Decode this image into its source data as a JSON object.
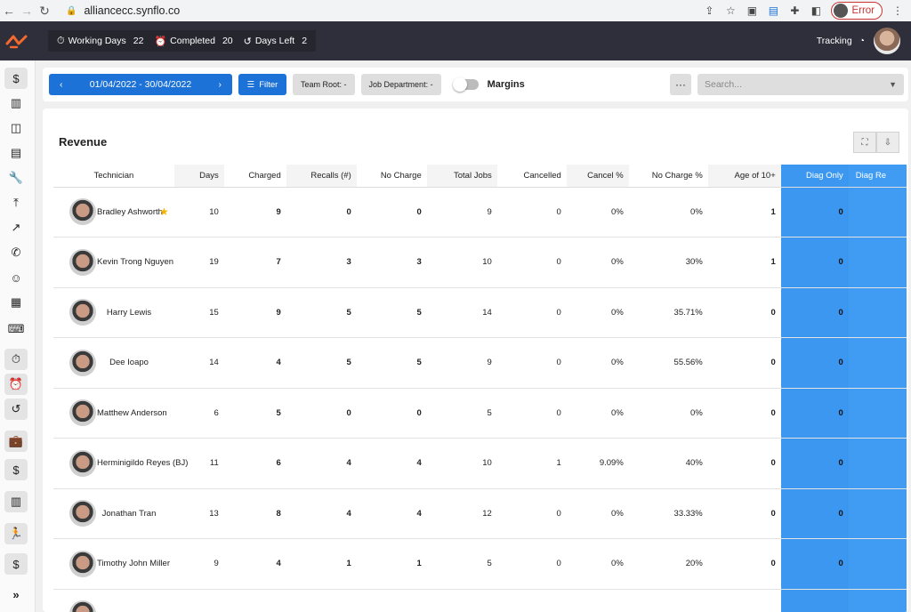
{
  "browser": {
    "url": "alliancecc.synflo.co",
    "profile_label": "Error"
  },
  "header": {
    "working_days_label": "Working Days",
    "working_days_value": "22",
    "completed_label": "Completed",
    "completed_value": "20",
    "days_left_label": "Days Left",
    "days_left_value": "2",
    "tracking_label": "Tracking"
  },
  "filters": {
    "date_range": "01/04/2022 - 30/04/2022",
    "filter_label": "Filter",
    "team_root_label": "Team Root: -",
    "job_department_label": "Job Department: -",
    "margins_label": "Margins",
    "more_label": "···",
    "search_placeholder": "Search..."
  },
  "revenue": {
    "title": "Revenue",
    "columns": [
      "Technician",
      "Days",
      "Charged",
      "Recalls (#)",
      "No Charge",
      "Total Jobs",
      "Cancelled",
      "Cancel %",
      "No Charge %",
      "Age of 10+",
      "Diag Only",
      "Diag Re"
    ],
    "rows": [
      {
        "name": "Bradley Ashworth",
        "star": true,
        "days": "10",
        "charged": "9",
        "recalls": "0",
        "no_charge": "0",
        "total_jobs": "9",
        "cancelled": "0",
        "cancel_pct": "0%",
        "no_charge_pct": "0%",
        "age10": "1",
        "diag_only": "0"
      },
      {
        "name": "Kevin Trong Nguyen",
        "star": false,
        "days": "19",
        "charged": "7",
        "recalls": "3",
        "no_charge": "3",
        "total_jobs": "10",
        "cancelled": "0",
        "cancel_pct": "0%",
        "no_charge_pct": "30%",
        "age10": "1",
        "diag_only": "0"
      },
      {
        "name": "Harry Lewis",
        "star": false,
        "days": "15",
        "charged": "9",
        "recalls": "5",
        "no_charge": "5",
        "total_jobs": "14",
        "cancelled": "0",
        "cancel_pct": "0%",
        "no_charge_pct": "35.71%",
        "age10": "0",
        "diag_only": "0"
      },
      {
        "name": "Dee Ioapo",
        "star": false,
        "days": "14",
        "charged": "4",
        "recalls": "5",
        "no_charge": "5",
        "total_jobs": "9",
        "cancelled": "0",
        "cancel_pct": "0%",
        "no_charge_pct": "55.56%",
        "age10": "0",
        "diag_only": "0"
      },
      {
        "name": "Matthew Anderson",
        "star": false,
        "days": "6",
        "charged": "5",
        "recalls": "0",
        "no_charge": "0",
        "total_jobs": "5",
        "cancelled": "0",
        "cancel_pct": "0%",
        "no_charge_pct": "0%",
        "age10": "0",
        "diag_only": "0"
      },
      {
        "name": "Herminigildo Reyes (BJ)",
        "star": false,
        "days": "11",
        "charged": "6",
        "recalls": "4",
        "no_charge": "4",
        "total_jobs": "10",
        "cancelled": "1",
        "cancel_pct": "9.09%",
        "no_charge_pct": "40%",
        "age10": "0",
        "diag_only": "0"
      },
      {
        "name": "Jonathan Tran",
        "star": false,
        "days": "13",
        "charged": "8",
        "recalls": "4",
        "no_charge": "4",
        "total_jobs": "12",
        "cancelled": "0",
        "cancel_pct": "0%",
        "no_charge_pct": "33.33%",
        "age10": "0",
        "diag_only": "0"
      },
      {
        "name": "Timothy John Miller",
        "star": false,
        "days": "9",
        "charged": "4",
        "recalls": "1",
        "no_charge": "1",
        "total_jobs": "5",
        "cancelled": "0",
        "cancel_pct": "0%",
        "no_charge_pct": "20%",
        "age10": "0",
        "diag_only": "0"
      }
    ]
  },
  "sidebar": {
    "items": [
      "dollar-icon",
      "bar-chart-icon",
      "map-icon",
      "clipboard-icon",
      "wrench-icon",
      "upload-icon",
      "trend-icon",
      "phone-icon",
      "face-icon",
      "calendar-icon",
      "keyboard-icon",
      "stopwatch-icon",
      "alarm-icon",
      "history-icon",
      "briefcase-icon",
      "dollar-icon",
      "bar-chart-icon",
      "running-icon",
      "coin-icon",
      "expand-icon"
    ]
  },
  "colors": {
    "accent_blue": "#1d72d8",
    "diag_column": "#3b97f0",
    "header_bg": "#2f2f3b",
    "logo_orange": "#f26a2e",
    "star": "#f4b400"
  }
}
